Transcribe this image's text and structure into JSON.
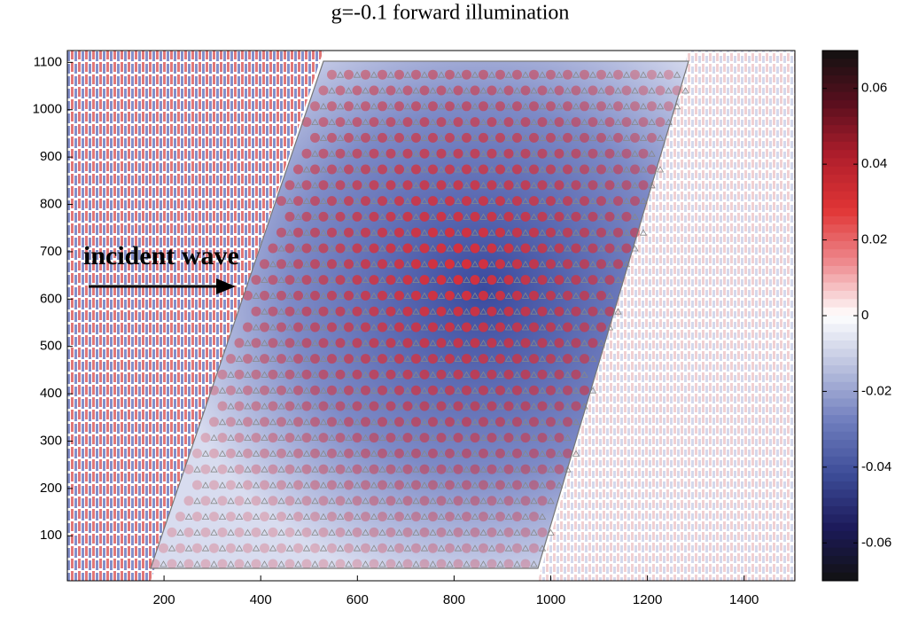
{
  "chart_data": {
    "type": "heatmap",
    "title": "g=-0.1 forward illumination",
    "annotation": "incident wave",
    "xlim": [
      0,
      1505
    ],
    "ylim": [
      5,
      1125
    ],
    "xticks": [
      200,
      400,
      600,
      800,
      1000,
      1200,
      1400
    ],
    "yticks": [
      100,
      200,
      300,
      400,
      500,
      600,
      700,
      800,
      900,
      1000,
      1100
    ],
    "clim": [
      -0.07,
      0.07
    ],
    "cticks": [
      0.06,
      0.04,
      0.02,
      0,
      -0.02,
      -0.04,
      -0.06
    ],
    "colormap": [
      "#111111",
      "#5a0f1e",
      "#b01e2c",
      "#e03535",
      "#ee8a8e",
      "#ffffff",
      "#b8bfdd",
      "#6f7dbd",
      "#3c4c98",
      "#1c1a5a",
      "#111111"
    ]
  }
}
